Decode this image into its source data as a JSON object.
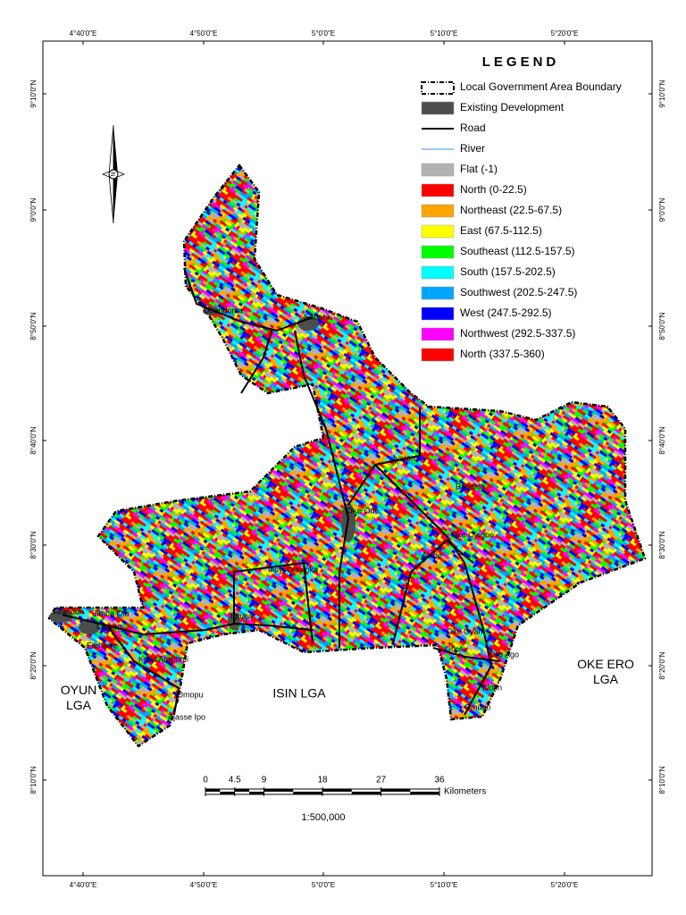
{
  "graticule": {
    "longitudes": [
      "4°40'0\"E",
      "4°50'0\"E",
      "5°0'0\"E",
      "5°10'0\"E",
      "5°20'0\"E"
    ],
    "latitudes": [
      "9°10'0\"N",
      "9°0'0\"N",
      "8°50'0\"N",
      "8°40'0\"N",
      "8°30'0\"N",
      "8°20'0\"N",
      "8°10'0\"N"
    ]
  },
  "legend": {
    "title": "LEGEND",
    "items": [
      {
        "label": "Local Government Area Boundary",
        "symbol": "boundary",
        "color": "#000000"
      },
      {
        "label": "Existing Development",
        "symbol": "fill",
        "color": "#4d4d4d"
      },
      {
        "label": "Road",
        "symbol": "line",
        "color": "#000000"
      },
      {
        "label": "River",
        "symbol": "line",
        "color": "#3b8fe0"
      },
      {
        "label": "Flat (-1)",
        "symbol": "fill",
        "color": "#b2b2b2"
      },
      {
        "label": "North (0-22.5)",
        "symbol": "fill",
        "color": "#ff0000"
      },
      {
        "label": "Northeast (22.5-67.5)",
        "symbol": "fill",
        "color": "#ffa500"
      },
      {
        "label": "East (67.5-112.5)",
        "symbol": "fill",
        "color": "#ffff00"
      },
      {
        "label": "Southeast (112.5-157.5)",
        "symbol": "fill",
        "color": "#00ff00"
      },
      {
        "label": "South (157.5-202.5)",
        "symbol": "fill",
        "color": "#00ffff"
      },
      {
        "label": "Southwest (202.5-247.5)",
        "symbol": "fill",
        "color": "#00a5ff"
      },
      {
        "label": "West (247.5-292.5)",
        "symbol": "fill",
        "color": "#0000ff"
      },
      {
        "label": "Northwest (292.5-337.5)",
        "symbol": "fill",
        "color": "#ff00ff"
      },
      {
        "label": "North (337.5-360)",
        "symbol": "fill",
        "color": "#ff0000"
      }
    ]
  },
  "places": [
    "Ubandoma",
    "Sabara",
    "Iyeroro",
    "Babanla",
    "Oke-Ode",
    "Oke Olegbo",
    "Alade",
    "Ikoyi Olayinka",
    "Igbaja",
    "Arandun",
    "Jimba Ola",
    "Oloyan",
    "Elehijere",
    "Koko Arapomi",
    "Omopu",
    "Ajasse Ipo",
    "Oke Oyan",
    "Obola",
    "Oro Ago",
    "Idofin",
    "Omugo"
  ],
  "lgas": [
    "OYUN LGA",
    "ISIN  LGA",
    "OKE ERO LGA"
  ],
  "scale_bar": {
    "ticks": [
      0,
      4.5,
      9,
      18,
      27,
      36
    ],
    "unit": "Kilometers",
    "ratio": "1:500,000"
  }
}
